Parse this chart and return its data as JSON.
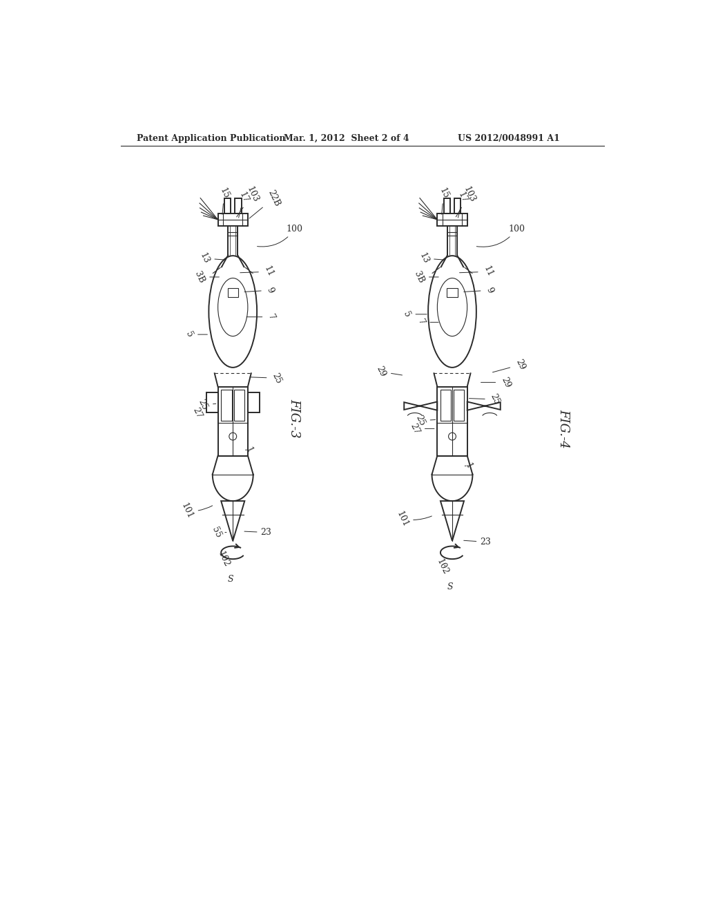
{
  "bg_color": "#ffffff",
  "line_color": "#2a2a2a",
  "header_left": "Patent Application Publication",
  "header_mid": "Mar. 1, 2012  Sheet 2 of 4",
  "header_right": "US 2012/0048991 A1",
  "fig3_label": "FIG.-3",
  "fig4_label": "FIG.-4"
}
